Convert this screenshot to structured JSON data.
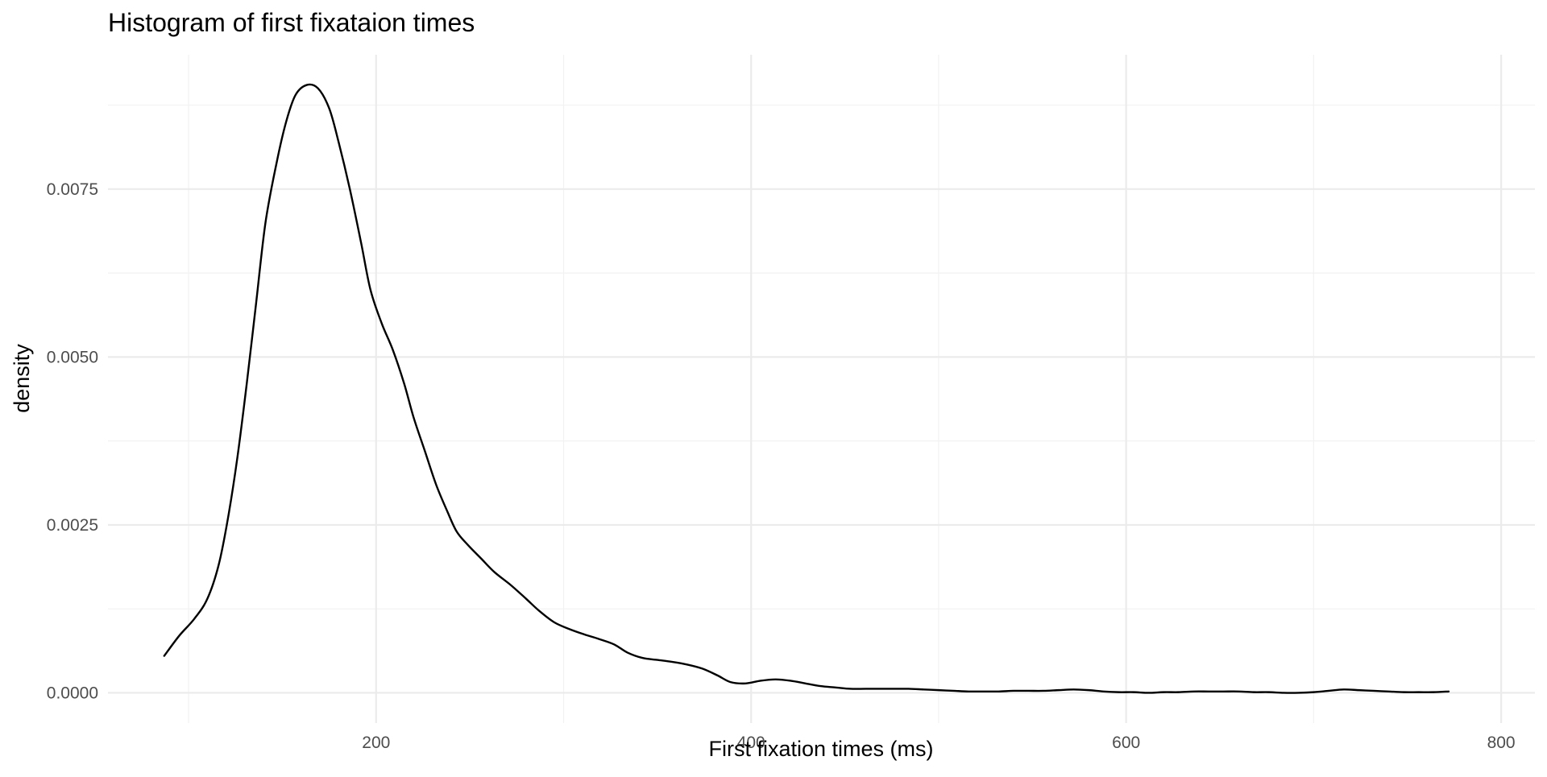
{
  "chart_data": {
    "type": "line",
    "title": "Histogram of first fixataion times",
    "xlabel": "First fixation times (ms)",
    "ylabel": "density",
    "xlim": [
      57,
      818
    ],
    "ylim": [
      -0.00045,
      0.0095
    ],
    "x_ticks": [
      200,
      400,
      600,
      800
    ],
    "x_tick_labels": [
      "200",
      "400",
      "600",
      "800"
    ],
    "x_minor": [
      100,
      300,
      500,
      700
    ],
    "y_ticks": [
      0.0,
      0.0025,
      0.005,
      0.0075
    ],
    "y_tick_labels": [
      "0.0000",
      "0.0025",
      "0.0050",
      "0.0075"
    ],
    "y_minor": [
      0.00125,
      0.00375,
      0.00625,
      0.00875
    ],
    "grid": true,
    "series": [
      {
        "color": "#000000",
        "x": [
          87,
          95,
          103,
          110,
          116,
          121,
          126,
          131,
          136,
          141,
          147,
          152,
          157,
          163,
          169,
          175,
          180,
          186,
          192,
          197,
          203,
          209,
          215,
          220,
          226,
          232,
          238,
          243,
          249,
          256,
          263,
          272,
          280,
          287,
          295,
          303,
          311,
          319,
          327,
          334,
          342,
          350,
          358,
          366,
          374,
          382,
          389,
          397,
          405,
          413,
          421,
          429,
          437,
          445,
          453,
          461,
          469,
          476,
          484,
          492,
          500,
          508,
          516,
          524,
          532,
          540,
          548,
          556,
          564,
          572,
          580,
          588,
          596,
          604,
          612,
          620,
          628,
          636,
          644,
          652,
          660,
          668,
          676,
          684,
          692,
          700,
          708,
          716,
          724,
          732,
          740,
          748,
          756,
          764,
          772
        ],
        "y": [
          0.00055,
          0.00085,
          0.0011,
          0.0014,
          0.0019,
          0.0026,
          0.0035,
          0.0046,
          0.0058,
          0.007,
          0.0079,
          0.0085,
          0.0089,
          0.00905,
          0.009,
          0.0087,
          0.0082,
          0.0075,
          0.0067,
          0.006,
          0.0055,
          0.0051,
          0.0046,
          0.0041,
          0.0036,
          0.0031,
          0.0027,
          0.0024,
          0.0022,
          0.002,
          0.0018,
          0.0016,
          0.0014,
          0.00122,
          0.00105,
          0.00095,
          0.00087,
          0.0008,
          0.00072,
          0.0006,
          0.00052,
          0.00049,
          0.00046,
          0.00042,
          0.00036,
          0.00026,
          0.00016,
          0.00014,
          0.00018,
          0.0002,
          0.00018,
          0.00014,
          0.0001,
          8e-05,
          6e-05,
          6e-05,
          6e-05,
          6e-05,
          6e-05,
          5e-05,
          4e-05,
          3e-05,
          2e-05,
          2e-05,
          2e-05,
          3e-05,
          3e-05,
          3e-05,
          4e-05,
          5e-05,
          4e-05,
          2e-05,
          1e-05,
          1e-05,
          0.0,
          1e-05,
          1e-05,
          2e-05,
          2e-05,
          2e-05,
          2e-05,
          1e-05,
          1e-05,
          0.0,
          0.0,
          1e-05,
          3e-05,
          5e-05,
          4e-05,
          3e-05,
          2e-05,
          1e-05,
          1e-05,
          1e-05,
          2e-05
        ]
      }
    ]
  }
}
